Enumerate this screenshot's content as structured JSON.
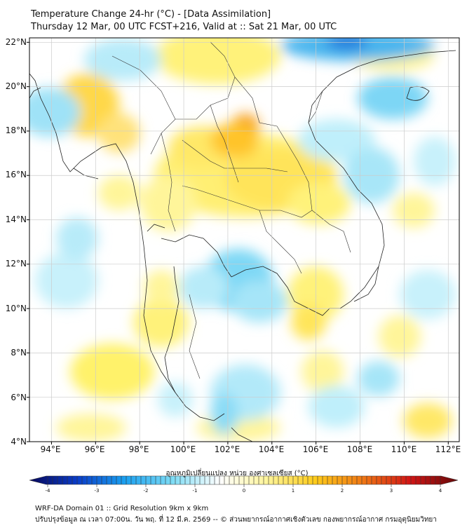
{
  "header": {
    "title_line1": "Temperature Change 24-hr (°C) - [Data Assimilation]",
    "title_line2": "Thursday 12 Mar, 00 UTC FCST+216, Valid at :: Sat 21 Mar, 00 UTC"
  },
  "map": {
    "lat_labels": [
      "22°N",
      "20°N",
      "18°N",
      "16°N",
      "14°N",
      "12°N",
      "10°N",
      "8°N",
      "6°N",
      "4°N"
    ],
    "lon_labels": [
      "94°E",
      "96°E",
      "98°E",
      "100°E",
      "102°E",
      "104°E",
      "106°E",
      "108°E",
      "110°E",
      "112°E"
    ],
    "lat_range": [
      4,
      22.2
    ],
    "lon_range": [
      93,
      112.5
    ]
  },
  "colorbar": {
    "title": "อุณหภูมิเปลี่ยนแปลง หน่วย องศาเซลเซียส (°C)",
    "ticks": [
      "-4",
      "-3",
      "-2",
      "-1",
      "0",
      "1",
      "2",
      "3",
      "4"
    ],
    "range": [
      -4,
      4
    ],
    "colors": [
      "#08085a",
      "#0a3cc8",
      "#1aa0f0",
      "#7ddcf5",
      "#ffffff",
      "#fff59a",
      "#ffcc1a",
      "#f07814",
      "#d21414",
      "#640a0a"
    ]
  },
  "footer": {
    "line1": "WRF-DA Domain 01 :: Grid Resolution 9km x 9km",
    "line2": "ปรับปรุงข้อมูล ณ เวลา 07:00น. วัน พฤ. ที่ 12 มี.ค. 2569 -- © ส่วนพยากรณ์อากาศเชิงตัวเลข กองพยากรณ์อากาศ กรมอุตุนิยมวิทยา"
  }
}
